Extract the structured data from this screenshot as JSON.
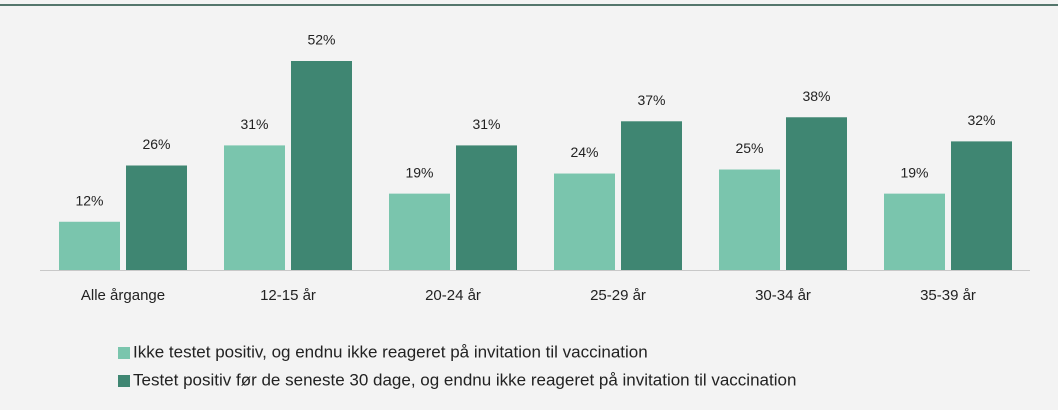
{
  "chart_data": {
    "type": "bar",
    "categories": [
      "Alle årgange",
      "12-15 år",
      "20-24  år",
      "25-29 år",
      "30-34 år",
      "35-39 år"
    ],
    "series": [
      {
        "name": "Ikke testet positiv, og endnu ikke reageret på invitation til vaccination",
        "color": "#7ac5ad",
        "values": [
          12,
          31,
          19,
          24,
          25,
          19
        ],
        "value_labels": [
          "12%",
          "31%",
          "19%",
          "24%",
          "25%",
          "19%"
        ]
      },
      {
        "name": "Testet positiv før de seneste 30 dage, og endnu ikke reageret på invitation til vaccination",
        "color": "#3f8672",
        "values": [
          26,
          52,
          31,
          37,
          38,
          32
        ],
        "value_labels": [
          "26%",
          "52%",
          "31%",
          "37%",
          "38%",
          "32%"
        ]
      }
    ]
  }
}
